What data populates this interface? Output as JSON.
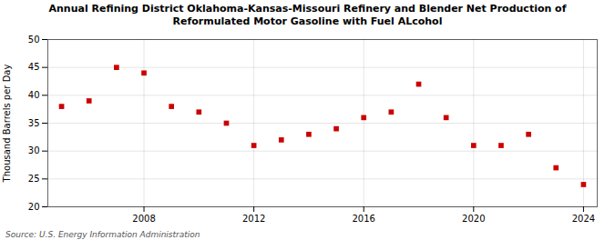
{
  "chart_data": {
    "type": "scatter",
    "title": "Annual Refining District Oklahoma-Kansas-Missouri Refinery and Blender Net Production of\nReformulated Motor Gasoline with Fuel ALcohol",
    "ylabel": "Thousand Barrels per Day",
    "source": "Source: U.S. Energy Information Administration",
    "x": [
      2005,
      2006,
      2007,
      2008,
      2009,
      2010,
      2011,
      2012,
      2013,
      2014,
      2015,
      2016,
      2017,
      2018,
      2019,
      2020,
      2021,
      2022,
      2023,
      2024
    ],
    "values": [
      38.0,
      39.0,
      45.0,
      44.0,
      38.0,
      37.0,
      35.0,
      31.0,
      32.0,
      33.0,
      34.0,
      36.0,
      37.0,
      42.0,
      36.0,
      31.0,
      31.0,
      33.0,
      27.0,
      24.0
    ],
    "color": "#cc0000",
    "marker": "square",
    "xlim": [
      2004.5,
      2024.5
    ],
    "xticks": [
      2008,
      2012,
      2016,
      2020,
      2024
    ],
    "ylim": [
      20,
      50
    ],
    "yticks": [
      20,
      25,
      30,
      35,
      40,
      45,
      50
    ],
    "grid": true
  }
}
